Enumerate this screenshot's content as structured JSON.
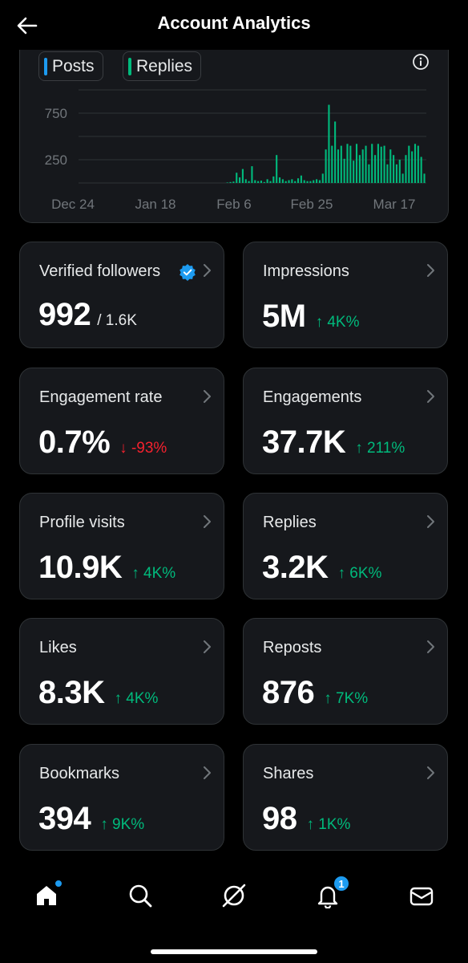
{
  "header": {
    "title": "Account Analytics"
  },
  "legend": {
    "posts_label": "Posts",
    "replies_label": "Replies",
    "posts_color": "#1d9bf0",
    "replies_color": "#00ba7c"
  },
  "chart_data": {
    "type": "bar",
    "title": "",
    "x_tick_labels": [
      "Dec 24",
      "Jan 18",
      "Feb 6",
      "Feb 25",
      "Mar 17"
    ],
    "y_tick_labels": [
      "750",
      "250"
    ],
    "ylim": [
      0,
      1000
    ],
    "grid": true,
    "series": [
      {
        "name": "Replies",
        "color": "#00ba7c",
        "values": [
          0,
          0,
          0,
          0,
          0,
          0,
          0,
          0,
          0,
          0,
          0,
          0,
          0,
          0,
          0,
          0,
          0,
          0,
          0,
          0,
          0,
          0,
          0,
          0,
          0,
          0,
          0,
          0,
          0,
          0,
          0,
          0,
          0,
          0,
          0,
          0,
          0,
          0,
          0,
          0,
          0,
          0,
          0,
          0,
          0,
          0,
          0,
          0,
          5,
          10,
          15,
          110,
          60,
          150,
          40,
          20,
          180,
          30,
          20,
          25,
          10,
          40,
          20,
          70,
          300,
          60,
          40,
          20,
          30,
          40,
          20,
          50,
          80,
          30,
          20,
          20,
          30,
          40,
          30,
          100,
          360,
          840,
          400,
          660,
          360,
          400,
          260,
          420,
          400,
          240,
          420,
          300,
          360,
          400,
          200,
          420,
          300,
          420,
          390,
          400,
          200,
          360,
          300,
          200,
          250,
          100,
          300,
          400,
          340,
          420,
          400,
          280,
          100
        ]
      },
      {
        "name": "Posts",
        "color": "#1d9bf0",
        "values": []
      }
    ]
  },
  "cards": [
    {
      "label": "Verified followers",
      "value": "992",
      "sub": "/ 1.6K",
      "change": "",
      "direction": ""
    },
    {
      "label": "Impressions",
      "value": "5M",
      "sub": "",
      "change": "↑ 4K%",
      "direction": "up"
    },
    {
      "label": "Engagement rate",
      "value": "0.7%",
      "sub": "",
      "change": "↓ -93%",
      "direction": "down"
    },
    {
      "label": "Engagements",
      "value": "37.7K",
      "sub": "",
      "change": "↑ 211%",
      "direction": "up"
    },
    {
      "label": "Profile visits",
      "value": "10.9K",
      "sub": "",
      "change": "↑ 4K%",
      "direction": "up"
    },
    {
      "label": "Replies",
      "value": "3.2K",
      "sub": "",
      "change": "↑ 6K%",
      "direction": "up"
    },
    {
      "label": "Likes",
      "value": "8.3K",
      "sub": "",
      "change": "↑ 4K%",
      "direction": "up"
    },
    {
      "label": "Reposts",
      "value": "876",
      "sub": "",
      "change": "↑ 7K%",
      "direction": "up"
    },
    {
      "label": "Bookmarks",
      "value": "394",
      "sub": "",
      "change": "↑ 9K%",
      "direction": "up"
    },
    {
      "label": "Shares",
      "value": "98",
      "sub": "",
      "change": "↑ 1K%",
      "direction": "up"
    }
  ],
  "nav": {
    "items": [
      "home-icon",
      "search-icon",
      "grok-icon",
      "bell-icon",
      "mail-icon"
    ],
    "notification_count": "1"
  },
  "colors": {
    "accent": "#1d9bf0",
    "up": "#00ba7c",
    "down": "#f4212e",
    "card_bg": "#16181c"
  }
}
